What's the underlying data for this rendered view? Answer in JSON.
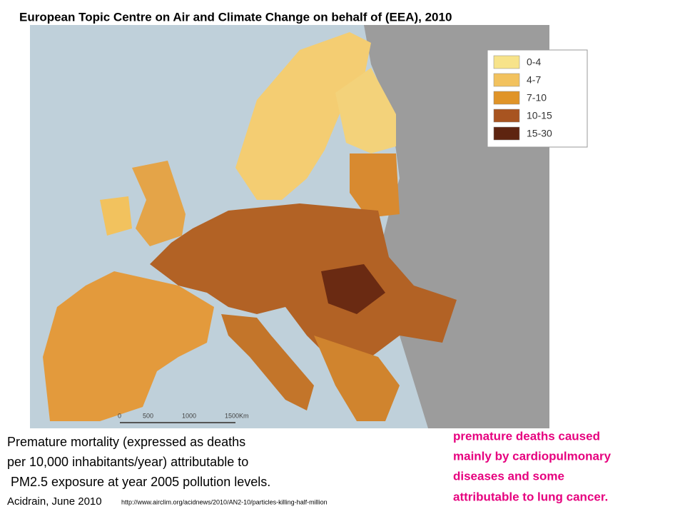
{
  "header": {
    "title": "European Topic Centre on Air and Climate Change on behalf of (EEA), 2010"
  },
  "map": {
    "legend": [
      {
        "label": "0-4",
        "color": "#f7e38a"
      },
      {
        "label": "4-7",
        "color": "#f2c25e"
      },
      {
        "label": "7-10",
        "color": "#e09428"
      },
      {
        "label": "10-15",
        "color": "#a85420"
      },
      {
        "label": "15-30",
        "color": "#5e2410"
      }
    ],
    "scale": [
      "0",
      "500",
      "1000",
      "1500Km"
    ]
  },
  "caption": {
    "lines": [
      "Premature mortality (expressed as deaths",
      "per 10,000 inhabitants/year) attributable to",
      " PM2.5 exposure at year 2005 pollution levels."
    ],
    "source": "Acidrain, June 2010",
    "url": "http://www.airclim.org/acidnews/2010/AN2-10/particles-killing-half-million"
  },
  "note": {
    "lines": [
      "premature deaths caused",
      "mainly by cardiopulmonary",
      "diseases and some",
      "attributable to lung cancer."
    ]
  }
}
